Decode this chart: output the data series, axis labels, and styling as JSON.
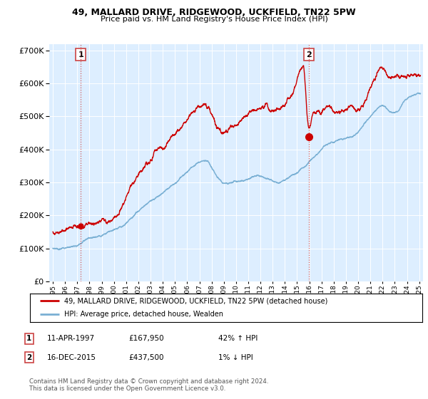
{
  "title": "49, MALLARD DRIVE, RIDGEWOOD, UCKFIELD, TN22 5PW",
  "subtitle": "Price paid vs. HM Land Registry's House Price Index (HPI)",
  "sale1_date": 1997.28,
  "sale1_price": 167950,
  "sale2_date": 2015.96,
  "sale2_price": 437500,
  "legend_line1": "49, MALLARD DRIVE, RIDGEWOOD, UCKFIELD, TN22 5PW (detached house)",
  "legend_line2": "HPI: Average price, detached house, Wealden",
  "hpi_color": "#7ab0d4",
  "price_color": "#cc0000",
  "bg_color": "#ddeeff",
  "vline_color": "#cc4444",
  "ylim": [
    0,
    720000
  ],
  "xlim_start": 1994.7,
  "xlim_end": 2025.3,
  "footer": "Contains HM Land Registry data © Crown copyright and database right 2024.\nThis data is licensed under the Open Government Licence v3.0."
}
